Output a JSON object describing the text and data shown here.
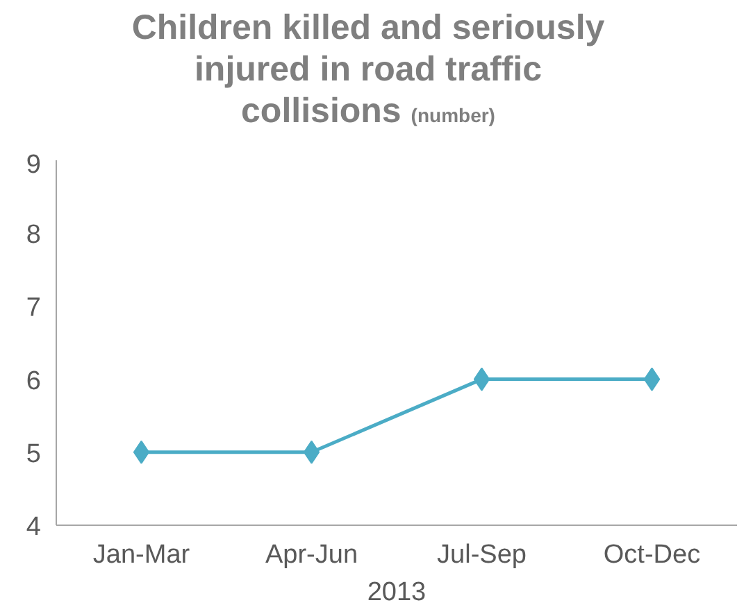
{
  "chart_data": {
    "type": "line",
    "title": "Children killed and seriously injured in road traffic collisions",
    "subtitle": "(number)",
    "xlabel": "2013",
    "categories": [
      "Jan-Mar",
      "Apr-Jun",
      "Jul-Sep",
      "Oct-Dec"
    ],
    "series": [
      {
        "color": "#4bacc6",
        "values": [
          5,
          5,
          6,
          6
        ]
      }
    ],
    "ylim": [
      4,
      9
    ],
    "yticks": [
      4,
      5,
      6,
      7,
      8,
      9
    ],
    "grid": false,
    "marker": "diamond",
    "line_style": "solid"
  }
}
